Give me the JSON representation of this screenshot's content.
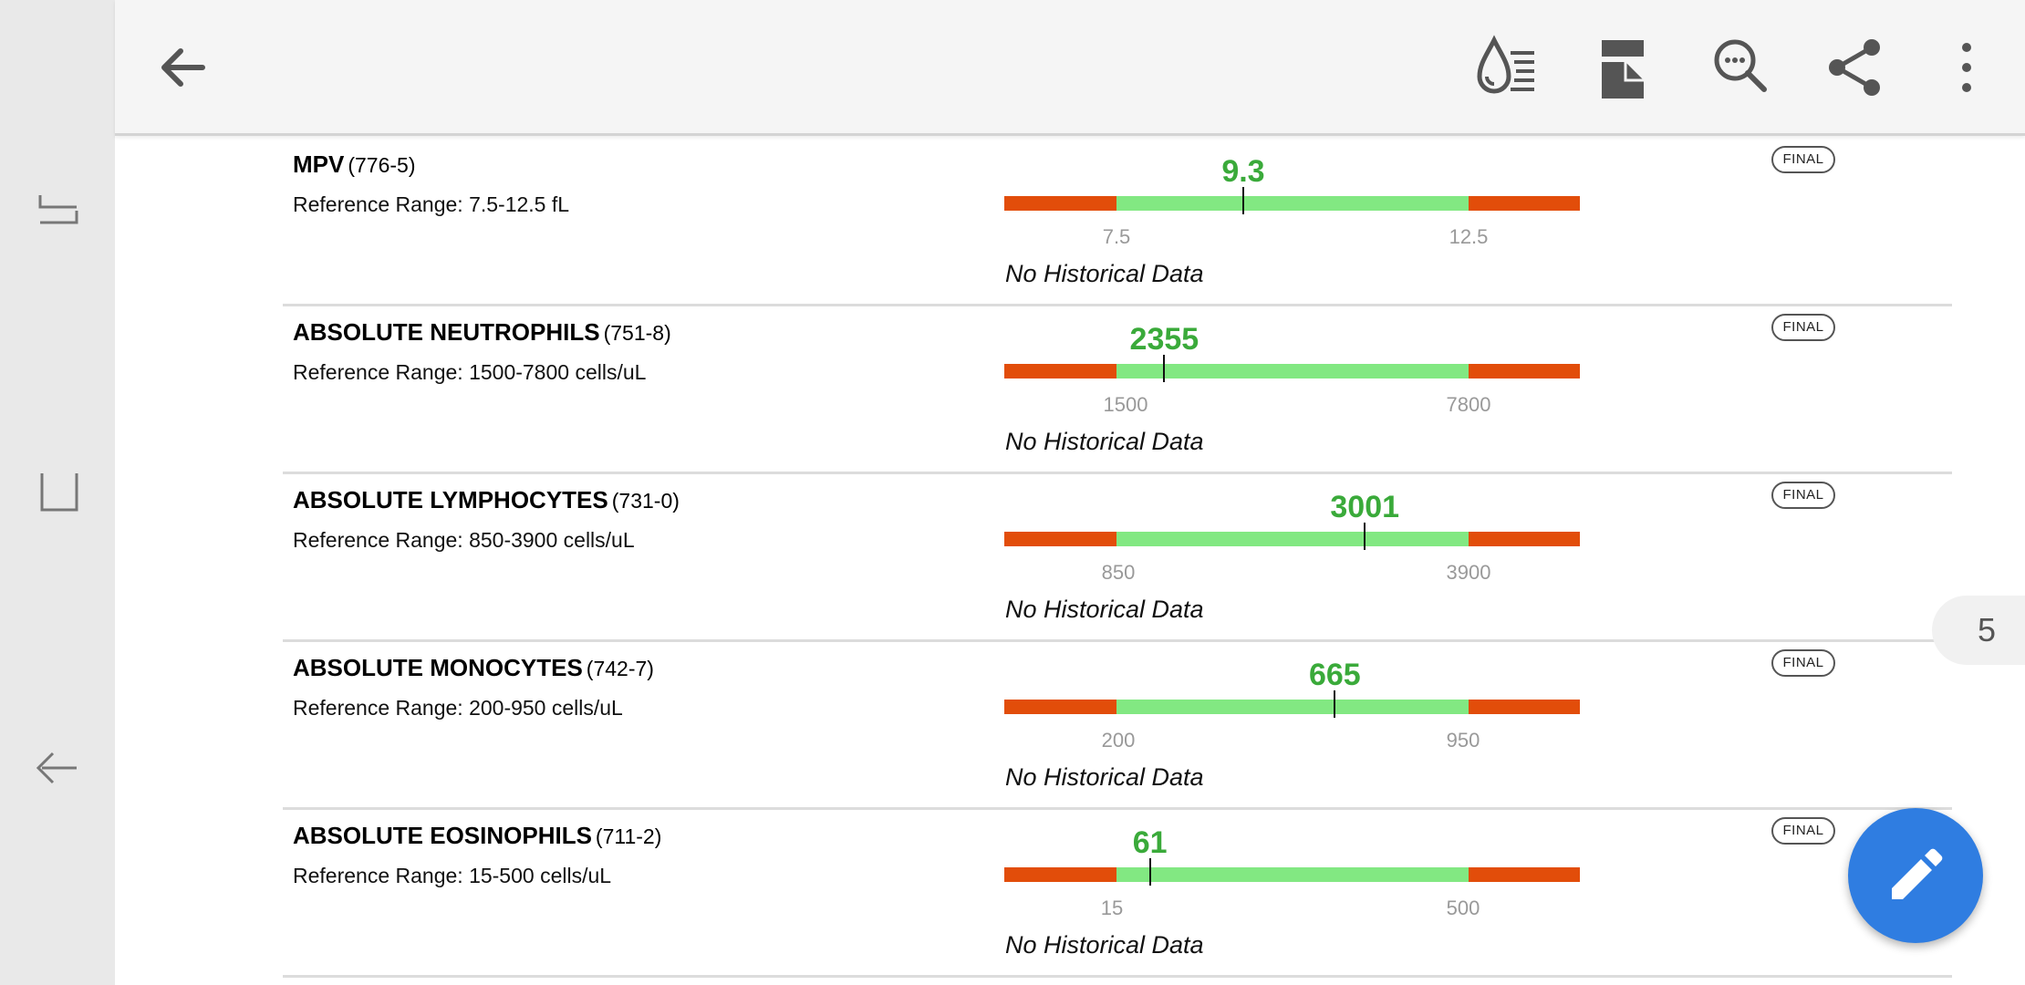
{
  "app_bar": {
    "back_icon": "arrow-left-icon",
    "actions": [
      "lab-filter-icon",
      "document-icon",
      "search-icon",
      "share-icon",
      "more-vertical-icon"
    ]
  },
  "system_nav": [
    "recent-apps-icon",
    "home-icon",
    "back-icon"
  ],
  "results": [
    {
      "name": "MPV",
      "code": "(776-5)",
      "range": "Reference Range: 7.5-12.5 fL",
      "status": "FINAL",
      "value": "9.3",
      "low_label": "7.5",
      "high_label": "12.5",
      "low": 7.5,
      "high": 12.5,
      "numeric_value": 9.3,
      "history": "No Historical Data"
    },
    {
      "name": "ABSOLUTE NEUTROPHILS",
      "code": "(751-8)",
      "range": "Reference Range: 1500-7800 cells/uL",
      "status": "FINAL",
      "value": "2355",
      "low_label": "1500",
      "high_label": "7800",
      "low": 1500,
      "high": 7800,
      "numeric_value": 2355,
      "history": "No Historical Data"
    },
    {
      "name": "ABSOLUTE LYMPHOCYTES",
      "code": "(731-0)",
      "range": "Reference Range: 850-3900 cells/uL",
      "status": "FINAL",
      "value": "3001",
      "low_label": "850",
      "high_label": "3900",
      "low": 850,
      "high": 3900,
      "numeric_value": 3001,
      "history": "No Historical Data"
    },
    {
      "name": "ABSOLUTE MONOCYTES",
      "code": "(742-7)",
      "range": "Reference Range: 200-950 cells/uL",
      "status": "FINAL",
      "value": "665",
      "low_label": "200",
      "high_label": "950",
      "low": 200,
      "high": 950,
      "numeric_value": 665,
      "history": "No Historical Data"
    },
    {
      "name": "ABSOLUTE EOSINOPHILS",
      "code": "(711-2)",
      "range": "Reference Range: 15-500 cells/uL",
      "status": "FINAL",
      "value": "61",
      "low_label": "15",
      "high_label": "500",
      "low": 15,
      "high": 500,
      "numeric_value": 61,
      "history": "No Historical Data"
    }
  ],
  "page_indicator": "5",
  "fab": {
    "icon": "pencil-icon"
  },
  "colors": {
    "out_of_range": "#e24d0a",
    "in_range": "#82e882",
    "value_text": "#3aaa3a",
    "fab": "#2f7de1"
  }
}
